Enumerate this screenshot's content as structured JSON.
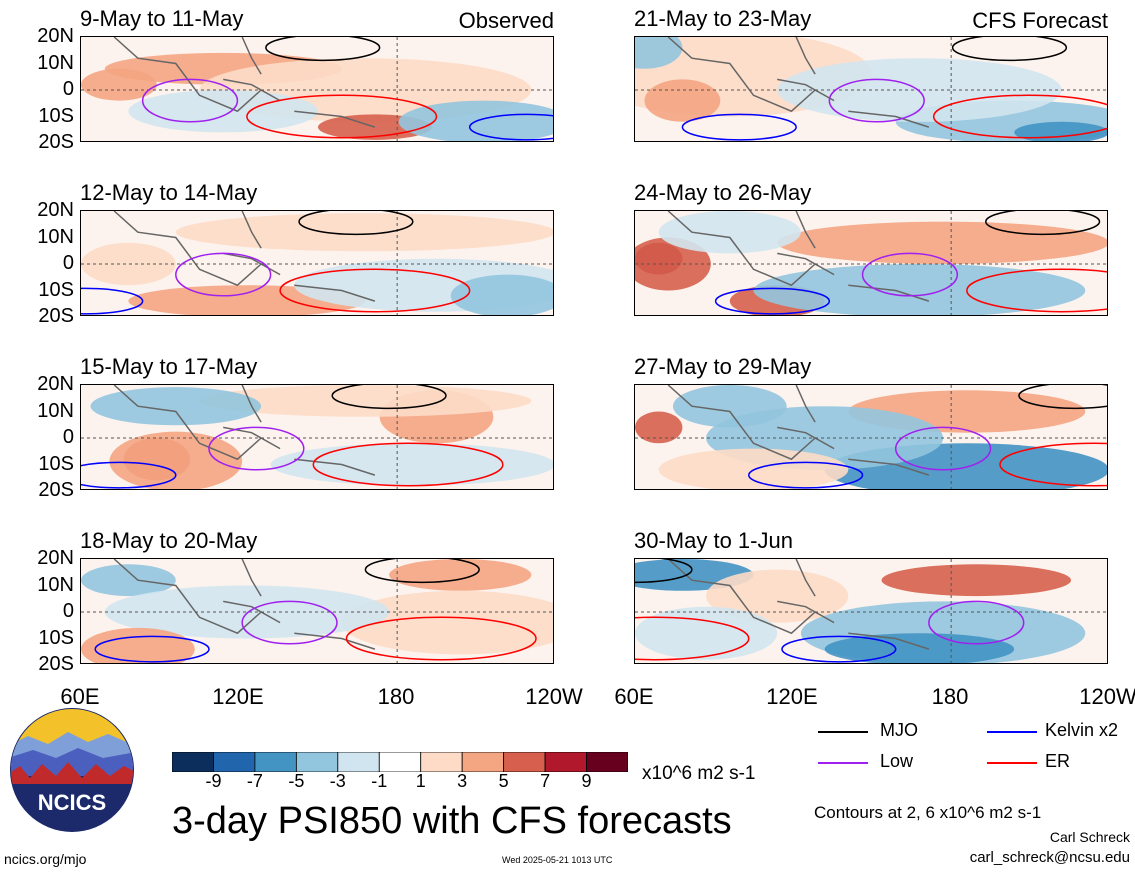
{
  "title": "3-day PSI850 with CFS forecasts",
  "tags": {
    "observed": "Observed",
    "forecast": "CFS Forecast"
  },
  "lat_labels": [
    "20N",
    "10N",
    "0",
    "10S",
    "20S"
  ],
  "lon_labels": [
    "60E",
    "120E",
    "180",
    "120W"
  ],
  "colorbar": {
    "colors": [
      "#0b2e5c",
      "#2166ac",
      "#4393c3",
      "#92c5de",
      "#d1e5f0",
      "#ffffff",
      "#fddbc7",
      "#f4a582",
      "#d6604d",
      "#b2182b",
      "#67001f"
    ],
    "ticks": [
      "-9",
      "-7",
      "-5",
      "-3",
      "-1",
      "1",
      "3",
      "5",
      "7",
      "9"
    ],
    "units": "x10^6 m2 s-1"
  },
  "legend": [
    {
      "label": "MJO",
      "color": "#000000"
    },
    {
      "label": "Kelvin x2",
      "color": "#0000ff"
    },
    {
      "label": "Low",
      "color": "#a020f0"
    },
    {
      "label": "ER",
      "color": "#ff0000"
    }
  ],
  "contours_note": "Contours at 2, 6 x10^6 m2 s-1",
  "author": "Carl Schreck",
  "email": "carl_schreck@ncsu.edu",
  "site": "ncics.org/mjo",
  "timestamp": "Wed 2025-05-21 1013 UTC",
  "logo_text": "NCICS",
  "chart_data": {
    "type": "heatmap",
    "variable": "PSI850 anomaly",
    "units": "x10^6 m2 s-1",
    "x_ticks": [
      "60E",
      "120E",
      "180",
      "120W"
    ],
    "y_ticks": [
      "20N",
      "10N",
      "0",
      "10S",
      "20S"
    ],
    "panels": [
      {
        "title": "9-May to 11-May",
        "tag": "Observed"
      },
      {
        "title": "12-May to 14-May"
      },
      {
        "title": "15-May to 17-May"
      },
      {
        "title": "18-May to 20-May"
      },
      {
        "title": "21-May to 23-May",
        "tag": "CFS Forecast"
      },
      {
        "title": "24-May to 26-May"
      },
      {
        "title": "27-May to 29-May"
      },
      {
        "title": "30-May to 1-Jun"
      }
    ]
  }
}
